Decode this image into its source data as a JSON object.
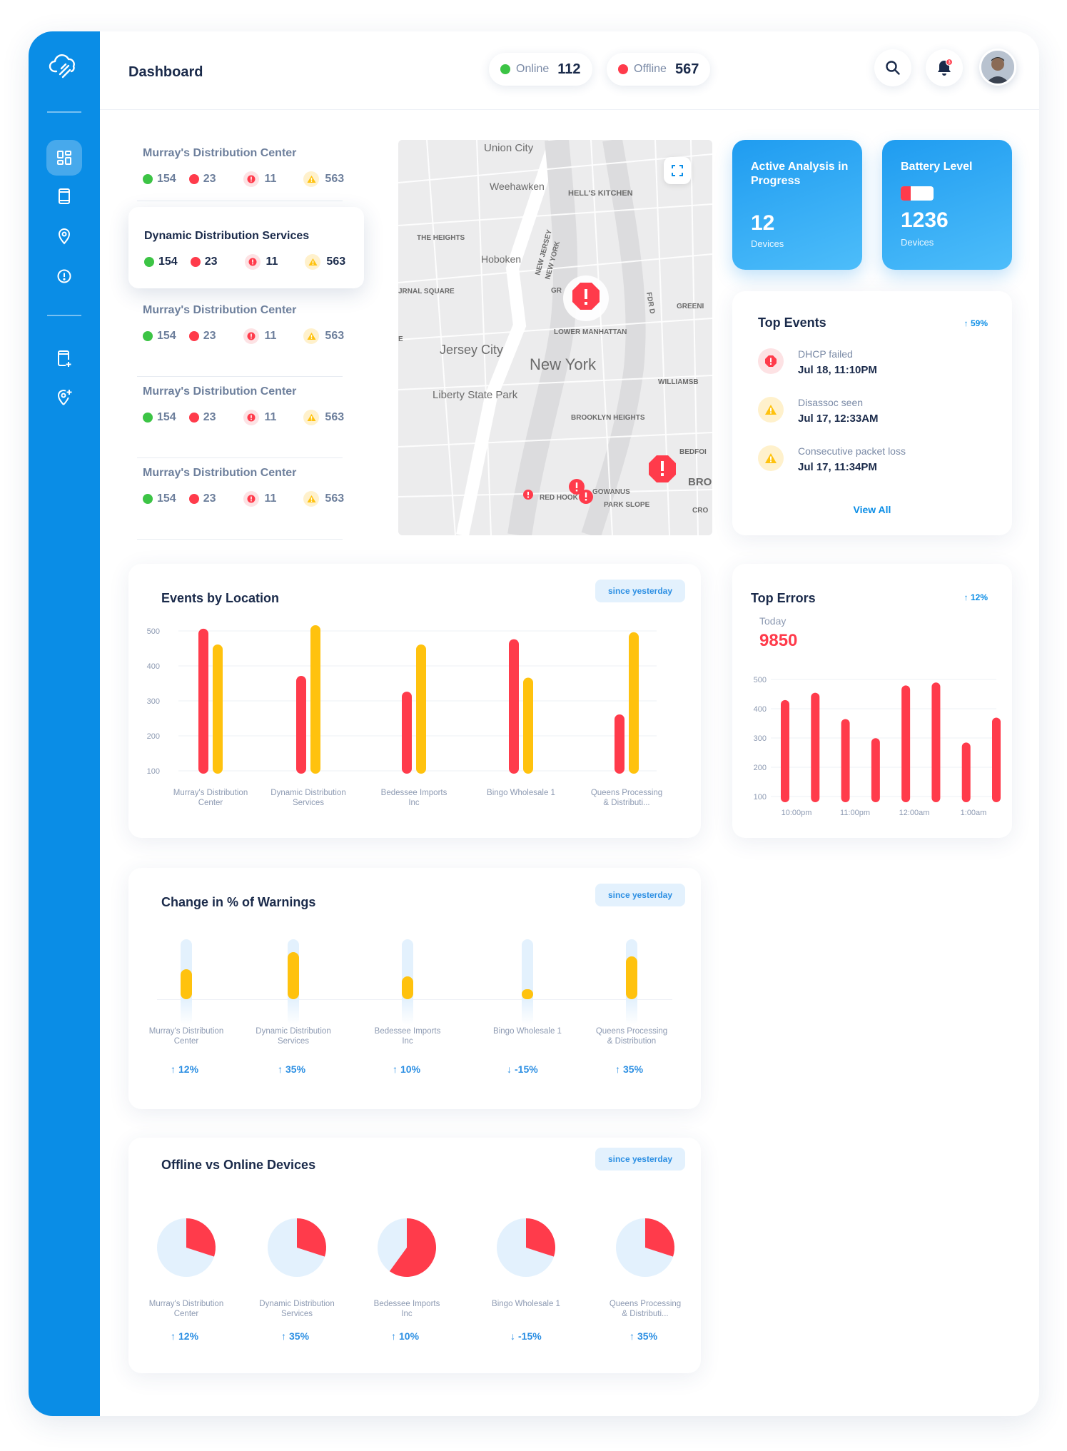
{
  "header": {
    "title": "Dashboard",
    "online": {
      "label": "Online",
      "count": "112",
      "color": "#3cc445"
    },
    "offline": {
      "label": "Offline",
      "count": "567",
      "color": "#ff3b4b"
    },
    "notifications_count": "3"
  },
  "sidebar": {
    "items": [
      {
        "icon": "dashboard-icon",
        "active": true
      },
      {
        "icon": "device-icon"
      },
      {
        "icon": "location-pin-icon"
      },
      {
        "icon": "alert-icon"
      },
      {
        "icon": "add-device-icon"
      },
      {
        "icon": "add-location-icon"
      }
    ]
  },
  "locations": [
    {
      "name": "Murray's Distribution Center",
      "online": "154",
      "offline": "23",
      "errors": "11",
      "warnings": "563"
    },
    {
      "name": "Dynamic Distribution Services",
      "online": "154",
      "offline": "23",
      "errors": "11",
      "warnings": "563",
      "active": true
    },
    {
      "name": "Murray's Distribution Center",
      "online": "154",
      "offline": "23",
      "errors": "11",
      "warnings": "563"
    },
    {
      "name": "Murray's Distribution Center",
      "online": "154",
      "offline": "23",
      "errors": "11",
      "warnings": "563"
    },
    {
      "name": "Murray's Distribution Center",
      "online": "154",
      "offline": "23",
      "errors": "11",
      "warnings": "563"
    }
  ],
  "map": {
    "labels": [
      "Union City",
      "Weehawken",
      "HELL'S KITCHEN",
      "THE HEIGHTS",
      "Hoboken",
      "NEW JERSEY",
      "NEW YORK",
      "JRNAL SQUARE",
      "GR",
      "FDR D",
      "GREENI",
      "LOWER MANHATTAN",
      "Jersey City",
      "New York",
      "WILLIAMSB",
      "Liberty State Park",
      "BROOKLYN HEIGHTS",
      "BEDFOI",
      "BRO",
      "RED HOOK",
      "GOWANUS",
      "PARK SLOPE",
      "CRO",
      "E"
    ]
  },
  "tiles": {
    "analysis": {
      "title": "Active Analysis in Progress",
      "value": "12",
      "sub": "Devices"
    },
    "battery": {
      "title": "Battery Level",
      "value": "1236",
      "sub": "Devices"
    }
  },
  "top_events": {
    "title": "Top Events",
    "trend": "59%",
    "items": [
      {
        "type": "error",
        "label": "DHCP failed",
        "date": "Jul 18, 11:10PM"
      },
      {
        "type": "warning",
        "label": "Disassoc seen",
        "date": "Jul 17, 12:33AM"
      },
      {
        "type": "warning",
        "label": "Consecutive packet loss",
        "date": "Jul 17, 11:34PM"
      }
    ],
    "view_all": "View All"
  },
  "events_by_location": {
    "title": "Events by Location",
    "chip": "since yesterday",
    "categories": [
      "Murray's Distribution Center",
      "Dynamic Distribution Services",
      "Bedessee Imports Inc",
      "Bingo Wholesale 1",
      "Queens Processing & Distributi..."
    ]
  },
  "top_errors": {
    "title": "Top Errors",
    "trend": "12%",
    "today_label": "Today",
    "today_value": "9850"
  },
  "warnings_change": {
    "title": "Change in % of Warnings",
    "chip": "since yesterday",
    "items": [
      {
        "label": "Murray's Distribution Center",
        "pct": "12%",
        "dir": "up",
        "fill": 0.35
      },
      {
        "label": "Dynamic Distribution Services",
        "pct": "35%",
        "dir": "up",
        "fill": 0.55
      },
      {
        "label": "Bedessee Imports Inc",
        "pct": "10%",
        "dir": "up",
        "fill": 0.27
      },
      {
        "label": "Bingo Wholesale 1",
        "pct": "-15%",
        "dir": "down",
        "fill": 0.12
      },
      {
        "label": "Queens Processing & Distribution",
        "pct": "35%",
        "dir": "up",
        "fill": 0.5
      }
    ]
  },
  "offline_online": {
    "title": "Offline vs Online Devices",
    "chip": "since yesterday",
    "items": [
      {
        "label": "Murray's Distribution Center",
        "pct": "12%",
        "dir": "up",
        "offline_share": 0.3
      },
      {
        "label": "Dynamic Distribution Services",
        "pct": "35%",
        "dir": "up",
        "offline_share": 0.3
      },
      {
        "label": "Bedessee Imports Inc",
        "pct": "10%",
        "dir": "up",
        "offline_share": 0.6
      },
      {
        "label": "Bingo Wholesale 1",
        "pct": "-15%",
        "dir": "down",
        "offline_share": 0.3
      },
      {
        "label": "Queens Processing & Distributi...",
        "pct": "35%",
        "dir": "up",
        "offline_share": 0.3
      }
    ]
  },
  "chart_data": [
    {
      "type": "bar",
      "title": "Events by Location",
      "categories": [
        "Murray's Distribution Center",
        "Dynamic Distribution Services",
        "Bedessee Imports Inc",
        "Bingo Wholesale 1",
        "Queens Processing & Distributi..."
      ],
      "series": [
        {
          "values": [
            490,
            355,
            310,
            460,
            245
          ],
          "color": "#ff3b4b"
        },
        {
          "values": [
            445,
            500,
            445,
            350,
            480
          ],
          "color": "#ffc20e"
        }
      ],
      "yticks": [
        100,
        200,
        300,
        400,
        500
      ],
      "ylim": [
        0,
        500
      ]
    },
    {
      "type": "bar",
      "title": "Top Errors",
      "x_ticks": [
        "10:00pm",
        "11:00pm",
        "12:00am",
        "1:00am"
      ],
      "series": [
        {
          "values": [
            410,
            435,
            345,
            280,
            460,
            470,
            265,
            350
          ],
          "color": "#ff3b4b"
        }
      ],
      "yticks": [
        100,
        200,
        300,
        400,
        500
      ],
      "ylim": [
        0,
        500
      ]
    }
  ]
}
